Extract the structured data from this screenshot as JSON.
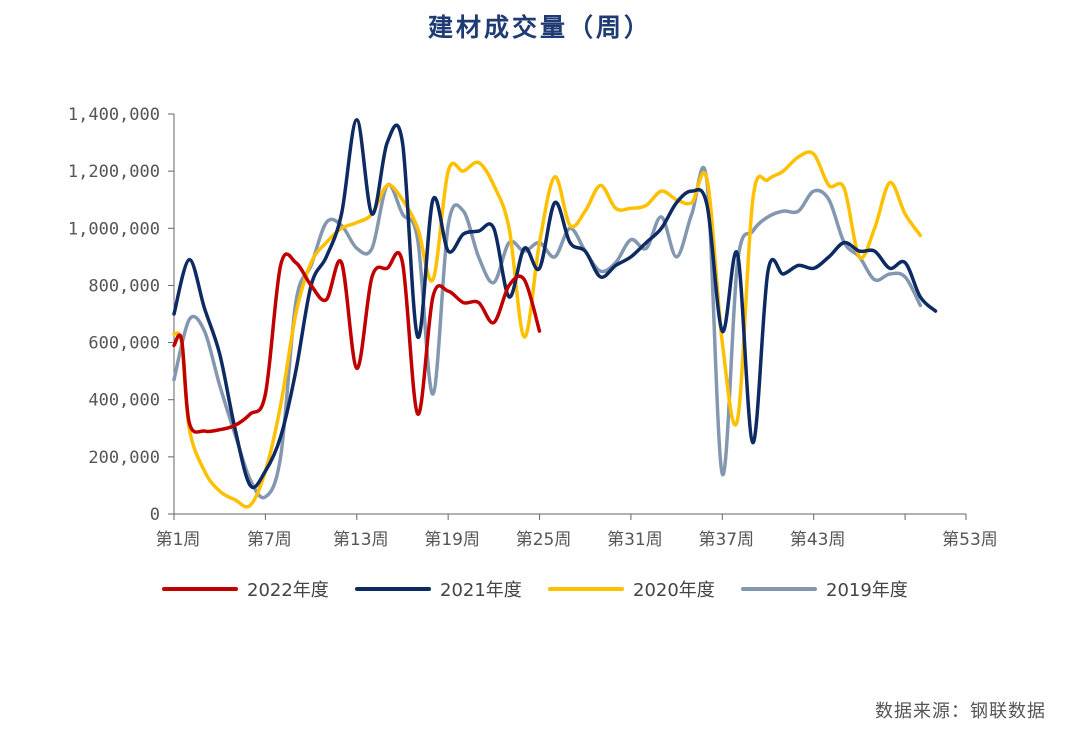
{
  "chart_data": {
    "type": "line",
    "title": "建材成交量（周）",
    "xlabel": "",
    "ylabel": "",
    "ylim": [
      0,
      1400000
    ],
    "xlim": [
      1,
      53
    ],
    "y_ticks": [
      {
        "value": 0,
        "label": "0"
      },
      {
        "value": 200000,
        "label": "200,000"
      },
      {
        "value": 400000,
        "label": "400,000"
      },
      {
        "value": 600000,
        "label": "600,000"
      },
      {
        "value": 800000,
        "label": "800,000"
      },
      {
        "value": 1000000,
        "label": "1,000,000"
      },
      {
        "value": 1200000,
        "label": "1,200,000"
      },
      {
        "value": 1400000,
        "label": "1,400,000"
      }
    ],
    "x_ticks": [
      {
        "value": 1,
        "label": "第1周"
      },
      {
        "value": 7,
        "label": "第7周"
      },
      {
        "value": 13,
        "label": "第13周"
      },
      {
        "value": 19,
        "label": "第19周"
      },
      {
        "value": 25,
        "label": "第25周"
      },
      {
        "value": 31,
        "label": "第31周"
      },
      {
        "value": 37,
        "label": "第37周"
      },
      {
        "value": 43,
        "label": "第43周"
      },
      {
        "value": 49,
        "label": ""
      },
      {
        "value": 53,
        "label": "第53周"
      }
    ],
    "grid": false,
    "legend_position": "bottom",
    "series": [
      {
        "name": "2022年度",
        "color": "#c00000",
        "points": [
          [
            1,
            590000
          ],
          [
            1.5,
            610000
          ],
          [
            2,
            320000
          ],
          [
            3,
            290000
          ],
          [
            4,
            295000
          ],
          [
            5,
            310000
          ],
          [
            6,
            350000
          ],
          [
            7,
            420000
          ],
          [
            8,
            870000
          ],
          [
            9,
            880000
          ],
          [
            10,
            800000
          ],
          [
            11,
            750000
          ],
          [
            12,
            880000
          ],
          [
            13,
            510000
          ],
          [
            14,
            830000
          ],
          [
            15,
            860000
          ],
          [
            16,
            880000
          ],
          [
            17,
            350000
          ],
          [
            18,
            760000
          ],
          [
            19,
            780000
          ],
          [
            20,
            740000
          ],
          [
            21,
            740000
          ],
          [
            22,
            670000
          ],
          [
            23,
            800000
          ],
          [
            24,
            820000
          ],
          [
            25,
            640000
          ]
        ]
      },
      {
        "name": "2021年度",
        "color": "#0d2a63",
        "points": [
          [
            1,
            700000
          ],
          [
            2,
            890000
          ],
          [
            3,
            720000
          ],
          [
            4,
            560000
          ],
          [
            5,
            300000
          ],
          [
            6,
            100000
          ],
          [
            7,
            150000
          ],
          [
            8,
            270000
          ],
          [
            9,
            500000
          ],
          [
            10,
            800000
          ],
          [
            11,
            900000
          ],
          [
            12,
            1050000
          ],
          [
            13,
            1380000
          ],
          [
            14,
            1050000
          ],
          [
            15,
            1300000
          ],
          [
            16,
            1300000
          ],
          [
            17,
            620000
          ],
          [
            18,
            1100000
          ],
          [
            19,
            920000
          ],
          [
            20,
            980000
          ],
          [
            21,
            990000
          ],
          [
            22,
            1000000
          ],
          [
            23,
            760000
          ],
          [
            24,
            930000
          ],
          [
            25,
            860000
          ],
          [
            26,
            1090000
          ],
          [
            27,
            950000
          ],
          [
            28,
            920000
          ],
          [
            29,
            830000
          ],
          [
            30,
            870000
          ],
          [
            31,
            900000
          ],
          [
            32,
            950000
          ],
          [
            33,
            1000000
          ],
          [
            34,
            1090000
          ],
          [
            35,
            1130000
          ],
          [
            36,
            1080000
          ],
          [
            37,
            640000
          ],
          [
            38,
            910000
          ],
          [
            39,
            250000
          ],
          [
            40,
            850000
          ],
          [
            41,
            840000
          ],
          [
            42,
            870000
          ],
          [
            43,
            860000
          ],
          [
            44,
            900000
          ],
          [
            45,
            950000
          ],
          [
            46,
            920000
          ],
          [
            47,
            920000
          ],
          [
            48,
            860000
          ],
          [
            49,
            880000
          ],
          [
            50,
            760000
          ],
          [
            51,
            710000
          ]
        ]
      },
      {
        "name": "2020年度",
        "color": "#ffc000",
        "points": [
          [
            1,
            630000
          ],
          [
            1.5,
            600000
          ],
          [
            2,
            300000
          ],
          [
            3,
            150000
          ],
          [
            4,
            80000
          ],
          [
            5,
            50000
          ],
          [
            6,
            30000
          ],
          [
            7,
            150000
          ],
          [
            8,
            380000
          ],
          [
            9,
            700000
          ],
          [
            10,
            880000
          ],
          [
            11,
            950000
          ],
          [
            12,
            1000000
          ],
          [
            13,
            1020000
          ],
          [
            14,
            1050000
          ],
          [
            15,
            1150000
          ],
          [
            16,
            1100000
          ],
          [
            17,
            1000000
          ],
          [
            18,
            820000
          ],
          [
            19,
            1200000
          ],
          [
            20,
            1200000
          ],
          [
            21,
            1230000
          ],
          [
            22,
            1150000
          ],
          [
            23,
            1000000
          ],
          [
            24,
            620000
          ],
          [
            25,
            950000
          ],
          [
            26,
            1180000
          ],
          [
            27,
            1010000
          ],
          [
            28,
            1060000
          ],
          [
            29,
            1150000
          ],
          [
            30,
            1070000
          ],
          [
            31,
            1070000
          ],
          [
            32,
            1080000
          ],
          [
            33,
            1130000
          ],
          [
            34,
            1100000
          ],
          [
            35,
            1090000
          ],
          [
            36,
            1170000
          ],
          [
            37,
            600000
          ],
          [
            38,
            330000
          ],
          [
            39,
            1100000
          ],
          [
            40,
            1170000
          ],
          [
            41,
            1200000
          ],
          [
            42,
            1250000
          ],
          [
            43,
            1260000
          ],
          [
            44,
            1150000
          ],
          [
            45,
            1140000
          ],
          [
            46,
            900000
          ],
          [
            47,
            1000000
          ],
          [
            48,
            1160000
          ],
          [
            49,
            1050000
          ],
          [
            50,
            975000
          ]
        ]
      },
      {
        "name": "2019年度",
        "color": "#8497b0",
        "points": [
          [
            1,
            470000
          ],
          [
            2,
            680000
          ],
          [
            3,
            640000
          ],
          [
            4,
            450000
          ],
          [
            5,
            280000
          ],
          [
            6,
            120000
          ],
          [
            7,
            60000
          ],
          [
            8,
            200000
          ],
          [
            9,
            740000
          ],
          [
            10,
            870000
          ],
          [
            11,
            1020000
          ],
          [
            12,
            1010000
          ],
          [
            13,
            930000
          ],
          [
            14,
            930000
          ],
          [
            15,
            1150000
          ],
          [
            16,
            1050000
          ],
          [
            17,
            960000
          ],
          [
            18,
            420000
          ],
          [
            19,
            1010000
          ],
          [
            20,
            1060000
          ],
          [
            21,
            900000
          ],
          [
            22,
            810000
          ],
          [
            23,
            950000
          ],
          [
            24,
            920000
          ],
          [
            25,
            950000
          ],
          [
            26,
            900000
          ],
          [
            27,
            1000000
          ],
          [
            28,
            920000
          ],
          [
            29,
            850000
          ],
          [
            30,
            880000
          ],
          [
            31,
            960000
          ],
          [
            32,
            930000
          ],
          [
            33,
            1040000
          ],
          [
            34,
            900000
          ],
          [
            35,
            1050000
          ],
          [
            36,
            1160000
          ],
          [
            37,
            140000
          ],
          [
            38,
            880000
          ],
          [
            39,
            990000
          ],
          [
            40,
            1040000
          ],
          [
            41,
            1060000
          ],
          [
            42,
            1060000
          ],
          [
            43,
            1130000
          ],
          [
            44,
            1100000
          ],
          [
            45,
            950000
          ],
          [
            46,
            900000
          ],
          [
            47,
            820000
          ],
          [
            48,
            840000
          ],
          [
            49,
            830000
          ],
          [
            50,
            730000
          ]
        ]
      }
    ]
  },
  "footer": {
    "source": "数据来源：钢联数据"
  }
}
